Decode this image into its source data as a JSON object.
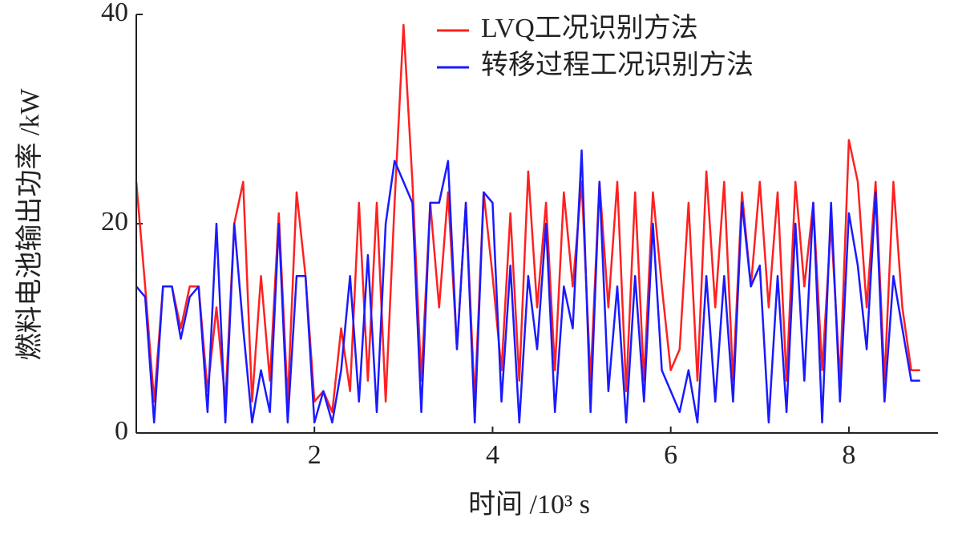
{
  "chart_data": {
    "type": "line",
    "xlabel": "时间 /10³ s",
    "ylabel": "燃料电池输出功率 /kW",
    "x": [
      0,
      0.1,
      0.2,
      0.3,
      0.4,
      0.5,
      0.6,
      0.7,
      0.8,
      0.9,
      1.0,
      1.1,
      1.2,
      1.3,
      1.4,
      1.5,
      1.6,
      1.7,
      1.8,
      1.9,
      2.0,
      2.1,
      2.2,
      2.3,
      2.4,
      2.5,
      2.6,
      2.7,
      2.8,
      2.9,
      3.0,
      3.1,
      3.2,
      3.3,
      3.4,
      3.5,
      3.6,
      3.7,
      3.8,
      3.9,
      4.0,
      4.1,
      4.2,
      4.3,
      4.4,
      4.5,
      4.6,
      4.7,
      4.8,
      4.9,
      5.0,
      5.1,
      5.2,
      5.3,
      5.4,
      5.5,
      5.6,
      5.7,
      5.8,
      5.9,
      6.0,
      6.1,
      6.2,
      6.3,
      6.4,
      6.5,
      6.6,
      6.7,
      6.8,
      6.9,
      7.0,
      7.1,
      7.2,
      7.3,
      7.4,
      7.5,
      7.6,
      7.7,
      7.8,
      7.9,
      8.0,
      8.1,
      8.2,
      8.3,
      8.4,
      8.5,
      8.6,
      8.7,
      8.8
    ],
    "series": [
      {
        "name": "LVQ工况识别方法",
        "color": "#ff2020",
        "values": [
          24,
          14,
          3,
          14,
          14,
          10,
          14,
          14,
          4,
          12,
          3,
          20,
          24,
          3,
          15,
          5,
          21,
          3,
          23,
          15,
          3,
          4,
          2,
          10,
          4,
          22,
          5,
          22,
          3,
          22,
          39,
          24,
          5,
          22,
          12,
          23,
          8,
          22,
          3,
          23,
          15,
          6,
          21,
          5,
          25,
          12,
          22,
          6,
          23,
          14,
          24,
          5,
          24,
          12,
          24,
          4,
          23,
          5,
          23,
          14,
          6,
          8,
          22,
          5,
          25,
          12,
          24,
          5,
          23,
          14,
          24,
          12,
          23,
          5,
          24,
          14,
          22,
          6,
          20,
          5,
          28,
          24,
          12,
          24,
          5,
          24,
          12,
          6,
          6
        ]
      },
      {
        "name": "转移过程工况识别方法",
        "color": "#1a1aff",
        "values": [
          14,
          13,
          1,
          14,
          14,
          9,
          13,
          14,
          2,
          20,
          1,
          20,
          10,
          1,
          6,
          2,
          20,
          1,
          15,
          15,
          1,
          4,
          1,
          6,
          15,
          3,
          17,
          2,
          20,
          26,
          24,
          22,
          2,
          22,
          22,
          26,
          8,
          22,
          1,
          23,
          22,
          3,
          16,
          1,
          15,
          8,
          20,
          2,
          14,
          10,
          27,
          2,
          24,
          4,
          14,
          1,
          15,
          3,
          20,
          6,
          4,
          2,
          6,
          1,
          15,
          3,
          15,
          3,
          22,
          14,
          16,
          1,
          15,
          2,
          20,
          5,
          22,
          1,
          22,
          3,
          21,
          16,
          8,
          23,
          3,
          15,
          10,
          5,
          5
        ]
      }
    ],
    "xlim": [
      0,
      9
    ],
    "ylim": [
      0,
      40
    ],
    "xticks": [
      2,
      4,
      6,
      8
    ],
    "yticks": [
      0,
      20,
      40
    ],
    "legend": "upper right"
  }
}
